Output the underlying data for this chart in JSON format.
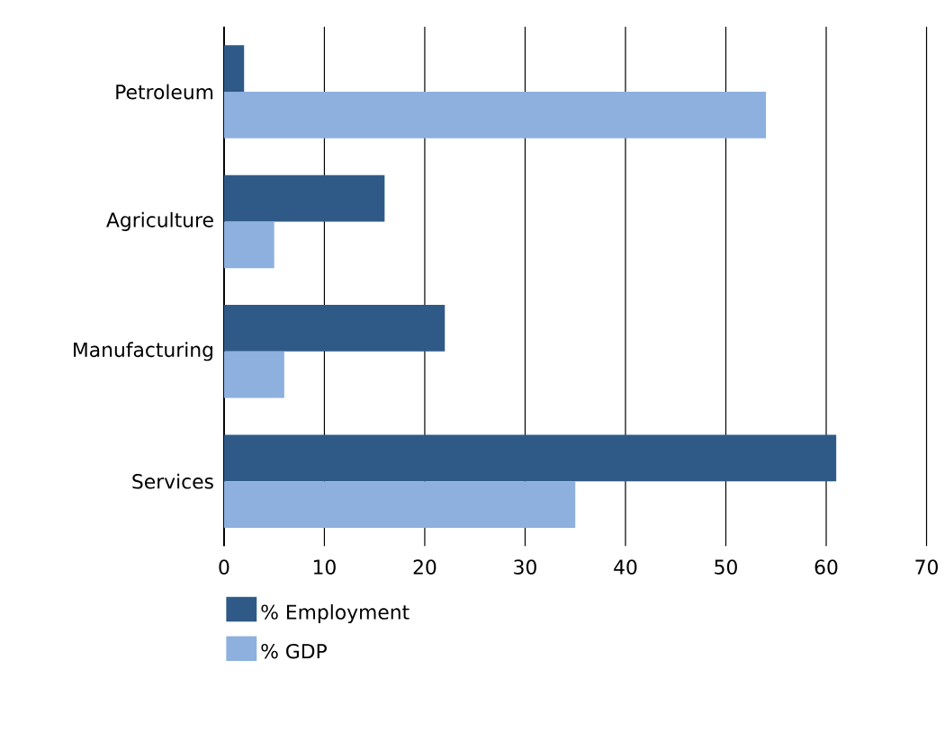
{
  "chart_data": {
    "type": "bar",
    "orientation": "horizontal",
    "categories": [
      "Petroleum",
      "Agriculture",
      "Manufacturing",
      "Services"
    ],
    "series": [
      {
        "name": "% Employment",
        "color": "#2f5a88",
        "values": [
          2,
          16,
          22,
          61
        ]
      },
      {
        "name": "% GDP",
        "color": "#8db0df",
        "values": [
          54,
          5,
          6,
          35
        ]
      }
    ],
    "xlim": [
      0,
      70
    ],
    "xticks": [
      0,
      10,
      20,
      30,
      40,
      50,
      60,
      70
    ],
    "grid": "x",
    "legend": "bottom left"
  }
}
